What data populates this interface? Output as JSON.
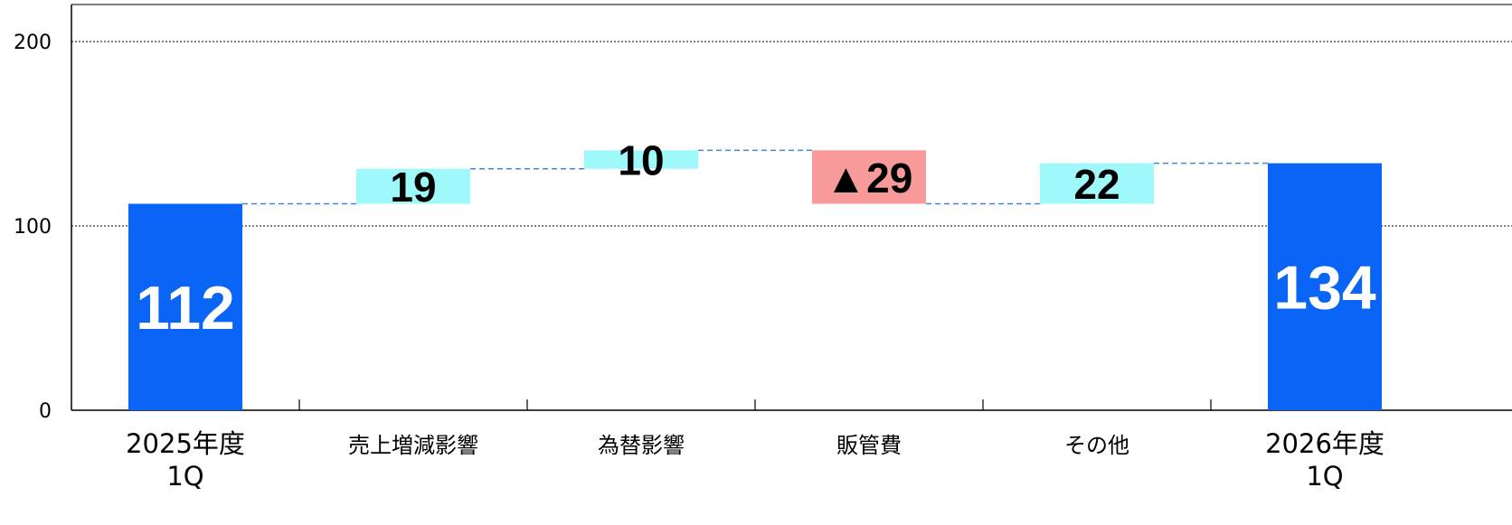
{
  "chart_data": {
    "type": "waterfall",
    "title": "",
    "xlabel": "",
    "ylabel": "",
    "ylim": [
      0,
      200
    ],
    "yticks": [
      "0",
      "100",
      "200"
    ],
    "grid": "horizontal dotted at 100 and 200",
    "categories": [
      [
        "2025年度",
        "1Q"
      ],
      [
        "売上増減影響"
      ],
      [
        "為替影響"
      ],
      [
        "販管費"
      ],
      [
        "その他"
      ],
      [
        "2026年度",
        "1Q"
      ]
    ],
    "steps": [
      {
        "kind": "total",
        "value": 112,
        "label": "112",
        "color": "#0a64f6"
      },
      {
        "kind": "increase",
        "value": 19,
        "label": "19",
        "color": "#9ff8fa"
      },
      {
        "kind": "increase",
        "value": 10,
        "label": "10",
        "color": "#9ff8fa"
      },
      {
        "kind": "decrease",
        "value": -29,
        "label": "▲29",
        "color": "#f89a9a"
      },
      {
        "kind": "increase",
        "value": 22,
        "label": "22",
        "color": "#9ff8fa"
      },
      {
        "kind": "total",
        "value": 134,
        "label": "134",
        "color": "#0a64f6"
      }
    ],
    "connector_color": "#4a86c8"
  }
}
